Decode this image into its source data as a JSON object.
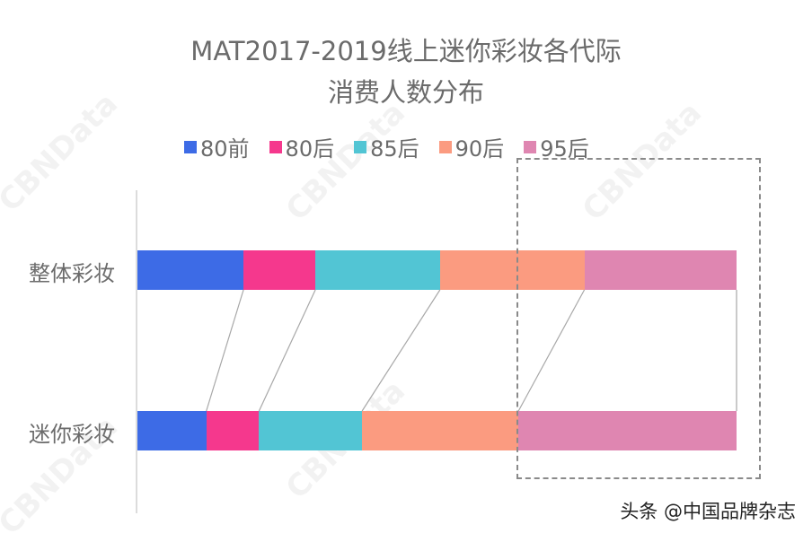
{
  "chart_data": {
    "type": "bar",
    "orientation": "horizontal",
    "stacked": true,
    "normalized_percent": true,
    "title": "MAT2017-2019线上迷你彩妆各代际消费人数分布",
    "title_lines": [
      "MAT2017-2019线上迷你彩妆各代际",
      "消费人数分布"
    ],
    "categories": [
      "整体彩妆",
      "迷你彩妆"
    ],
    "series": [
      {
        "name": "80前",
        "color": "#3d6be6",
        "values": [
          17.7,
          11.5
        ]
      },
      {
        "name": "80后",
        "color": "#f5388d",
        "values": [
          12.0,
          8.8
        ]
      },
      {
        "name": "85后",
        "color": "#52c5d4",
        "values": [
          20.8,
          17.2
        ]
      },
      {
        "name": "90后",
        "color": "#fb9b80",
        "values": [
          24.1,
          26.1
        ]
      },
      {
        "name": "95后",
        "color": "#df86b1",
        "values": [
          25.4,
          36.4
        ]
      }
    ],
    "legend_position": "top",
    "grid": false,
    "xlabel": "",
    "ylabel": "",
    "annotations": [
      "dashed box highlighting 95后 segment",
      "connector lines between matching segment boundaries"
    ]
  },
  "legend": [
    {
      "label": "80前",
      "color": "#3d6be6"
    },
    {
      "label": "80后",
      "color": "#f5388d"
    },
    {
      "label": "85后",
      "color": "#52c5d4"
    },
    {
      "label": "90后",
      "color": "#fb9b80"
    },
    {
      "label": "95后",
      "color": "#df86b1"
    }
  ],
  "rows": [
    {
      "label": "整体彩妆"
    },
    {
      "label": "迷你彩妆"
    }
  ],
  "watermark": "CBNData",
  "footer": "头条 @中国品牌杂志"
}
